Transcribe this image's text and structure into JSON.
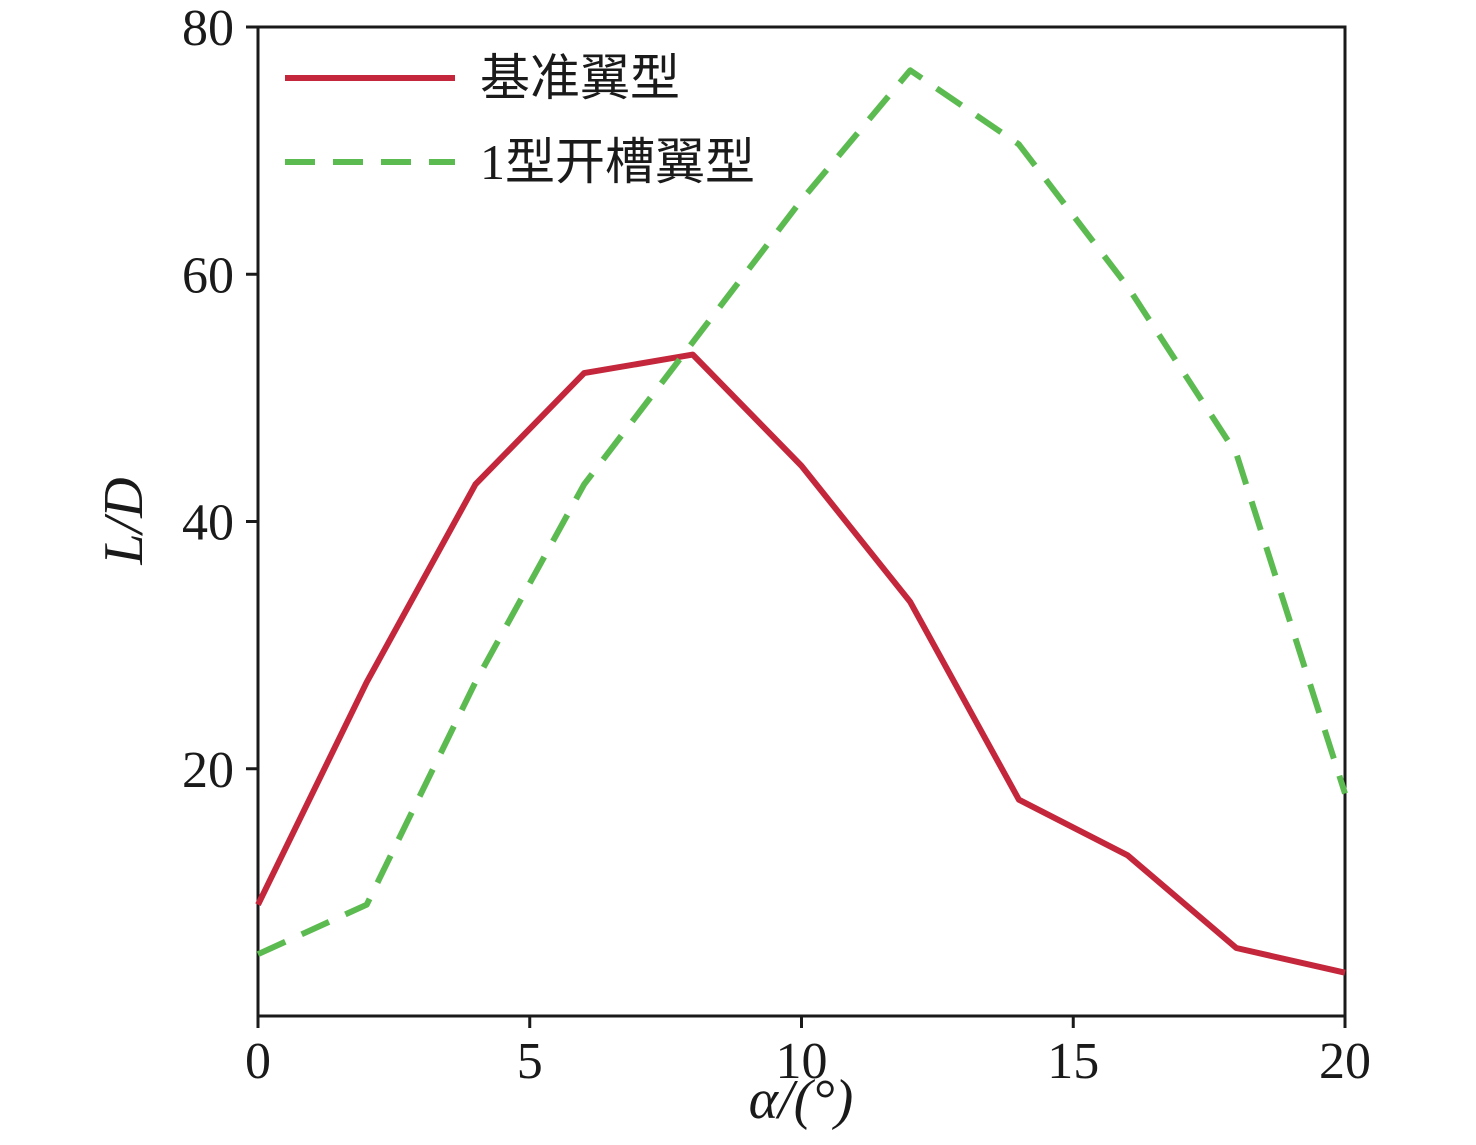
{
  "figure": {
    "background": "#ffffff",
    "frame_color": "#1a1a1a",
    "text_color": "#1a1a1a"
  },
  "chart_data": {
    "type": "line",
    "title": "",
    "xlabel": "α/(°)",
    "ylabel": "L/D",
    "xlim": [
      0,
      20
    ],
    "ylim": [
      0,
      80
    ],
    "xticks": [
      0,
      5,
      10,
      15,
      20
    ],
    "yticks": [
      20,
      40,
      60,
      80
    ],
    "grid": false,
    "legend_position": "top-left",
    "x": [
      0,
      2,
      4,
      6,
      8,
      10,
      12,
      14,
      16,
      18,
      20
    ],
    "series": [
      {
        "name": "基准翼型",
        "color": "#c4273b",
        "line_style": "solid",
        "values": [
          9,
          27,
          43,
          52,
          53.5,
          44.5,
          33.5,
          17.5,
          13,
          5.5,
          3.5
        ]
      },
      {
        "name": "1型开槽翼型",
        "color": "#5cbb50",
        "line_style": "dashed",
        "values": [
          5,
          9,
          27,
          43,
          54.5,
          66,
          76.5,
          70.5,
          59,
          45.5,
          18
        ]
      }
    ]
  }
}
